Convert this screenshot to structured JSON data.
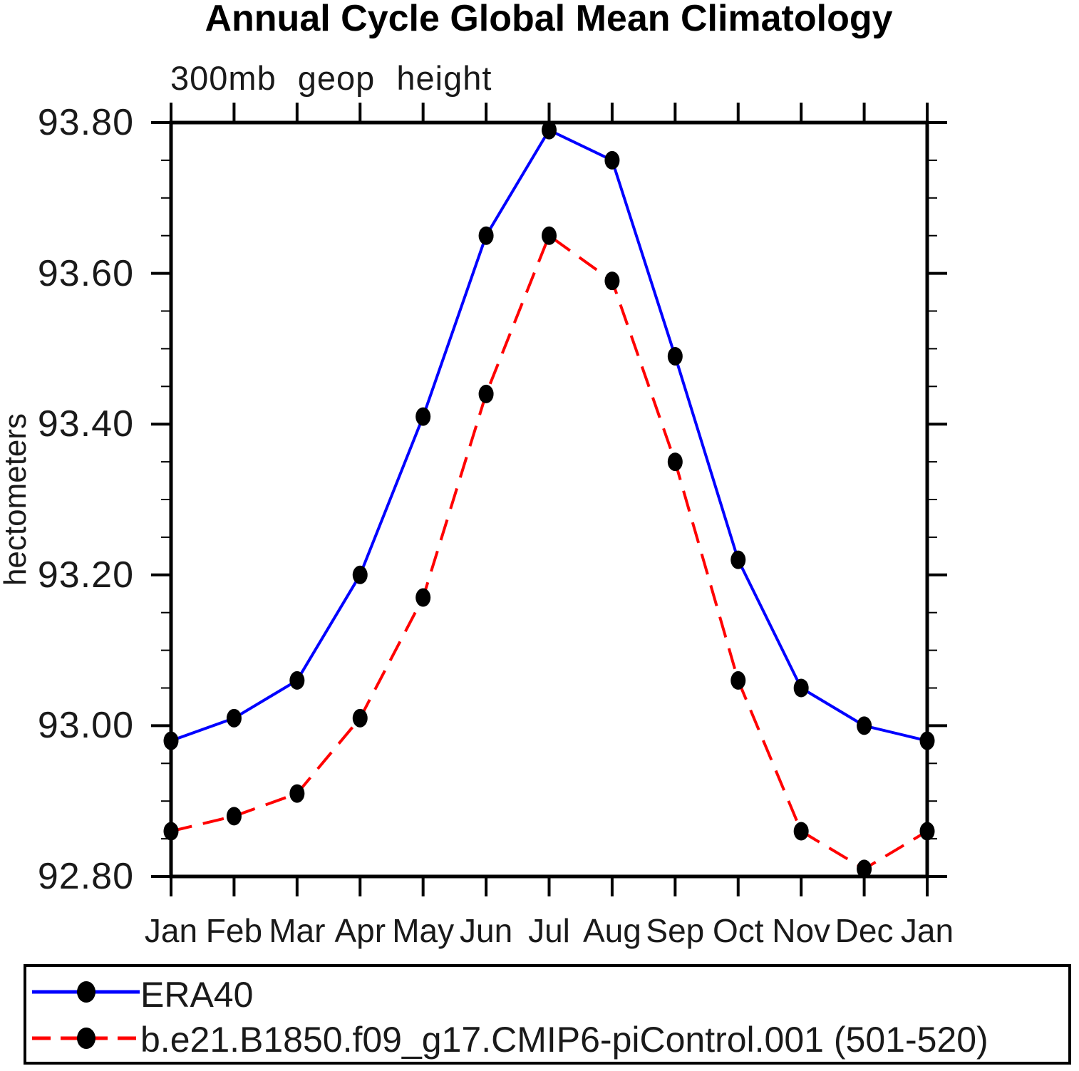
{
  "chart_data": {
    "type": "line",
    "title": "Annual Cycle Global Mean Climatology",
    "subtitle": "300mb geop height",
    "ylabel": "hectometers",
    "x_tick_labels": [
      "Jan",
      "Feb",
      "Mar",
      "Apr",
      "May",
      "Jun",
      "Jul",
      "Aug",
      "Sep",
      "Oct",
      "Nov",
      "Dec",
      "Jan"
    ],
    "ylim": [
      92.8,
      93.8
    ],
    "y_major_step": 0.2,
    "y_minor_step": 0.05,
    "y_tick_labels": [
      "93.80",
      "93.60",
      "93.40",
      "93.20",
      "93.00",
      "92.80"
    ],
    "grid": false,
    "legend_position": "bottom",
    "axis_color": "#000000",
    "marker_color": "#000000",
    "series": [
      {
        "name": "ERA40",
        "color": "#0000ff",
        "line_style": "solid",
        "marker": "filled-circle",
        "values": [
          92.98,
          93.01,
          93.06,
          93.2,
          93.41,
          93.65,
          93.79,
          93.75,
          93.49,
          93.22,
          93.05,
          93.0,
          92.98
        ]
      },
      {
        "name": "b.e21.B1850.f09_g17.CMIP6-piControl.001 (501-520)",
        "color": "#ff0000",
        "line_style": "dashed",
        "marker": "filled-circle",
        "values": [
          92.86,
          92.88,
          92.91,
          93.01,
          93.17,
          93.44,
          93.65,
          93.59,
          93.35,
          93.06,
          92.86,
          92.81,
          92.86
        ]
      }
    ]
  }
}
